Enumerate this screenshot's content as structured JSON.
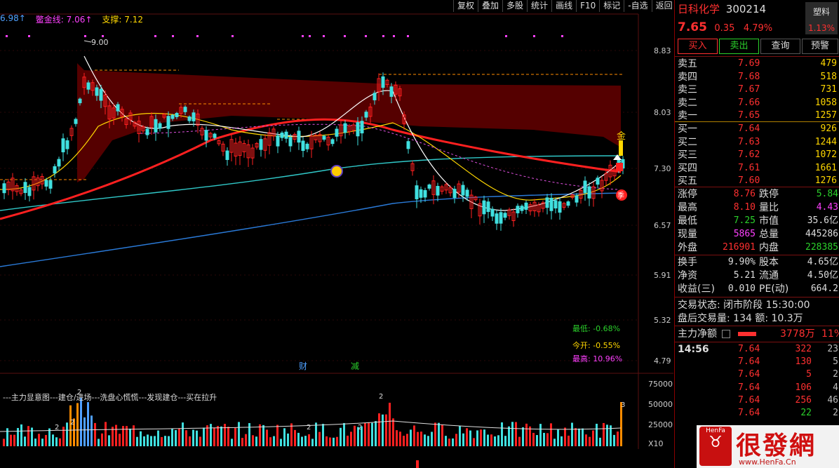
{
  "toolbar": [
    "复权",
    "叠加",
    "多股",
    "统计",
    "画线",
    "F10",
    "标记",
    "-自选",
    "返回"
  ],
  "indicators": {
    "first": "6.98↑",
    "second_label": "鳖金线: 7.06↑",
    "third_label": "支撑: 7.12"
  },
  "chart_price_marks": {
    "high_label": "9.00",
    "gold_label": "金",
    "ji_label": "季",
    "cai_label": "财",
    "jian_label": "减"
  },
  "price_axis": [
    "8.83",
    "8.03",
    "7.30",
    "6.57",
    "5.91",
    "5.32",
    "4.79"
  ],
  "vol_axis": [
    "75000",
    "50000",
    "25000",
    "X10"
  ],
  "stats_box": {
    "low": "最低: -0.68%",
    "open": "今开: -0.55%",
    "high": "最高: 10.96%"
  },
  "volume_caption": "---主力显意图---建仓/进场---洗盘心慌慌---发现建仓---买在拉升",
  "volume_marks": [
    "2",
    "2",
    "2",
    "2",
    "2",
    "2",
    "3"
  ],
  "stock": {
    "name": "日科化学",
    "code": "300214",
    "sector": "塑料",
    "sector_change": "1.13%",
    "price": "7.65",
    "change": "0.35",
    "change_pct": "4.79%"
  },
  "buttons": [
    "买入",
    "卖出",
    "查询",
    "预警"
  ],
  "asks": [
    {
      "label": "卖五",
      "price": "7.69",
      "vol": "479"
    },
    {
      "label": "卖四",
      "price": "7.68",
      "vol": "518"
    },
    {
      "label": "卖三",
      "price": "7.67",
      "vol": "731"
    },
    {
      "label": "卖二",
      "price": "7.66",
      "vol": "1058"
    },
    {
      "label": "卖一",
      "price": "7.65",
      "vol": "1257"
    }
  ],
  "bids": [
    {
      "label": "买一",
      "price": "7.64",
      "vol": "926"
    },
    {
      "label": "买二",
      "price": "7.63",
      "vol": "1244"
    },
    {
      "label": "买三",
      "price": "7.62",
      "vol": "1072"
    },
    {
      "label": "买四",
      "price": "7.61",
      "vol": "1661"
    },
    {
      "label": "买五",
      "price": "7.60",
      "vol": "1276"
    }
  ],
  "quote": [
    {
      "l1": "涨停",
      "v1": "8.76",
      "c1": "red",
      "l2": "跌停",
      "v2": "5.84",
      "c2": "green"
    },
    {
      "l1": "最高",
      "v1": "8.10",
      "c1": "red",
      "l2": "量比",
      "v2": "4.43",
      "c2": "magenta"
    },
    {
      "l1": "最低",
      "v1": "7.25",
      "c1": "green",
      "l2": "市值",
      "v2": "35.6亿",
      "c2": "white"
    },
    {
      "l1": "现量",
      "v1": "5865",
      "c1": "magenta",
      "l2": "总量",
      "v2": "445286",
      "c2": "white"
    },
    {
      "l1": "外盘",
      "v1": "216901",
      "c1": "red",
      "l2": "内盘",
      "v2": "228385",
      "c2": "green"
    }
  ],
  "fundamentals": [
    {
      "l1": "换手",
      "v1": "9.90%",
      "l2": "股本",
      "v2": "4.65亿"
    },
    {
      "l1": "净资",
      "v1": "5.21",
      "l2": "流通",
      "v2": "4.50亿"
    },
    {
      "l1": "收益(三)",
      "v1": "0.010",
      "l2": "PE(动)",
      "v2": "664.2"
    }
  ],
  "trade_status": "交易状态: 闭市阶段 15:30:00",
  "after_hours": "盘后交易量: 134  额: 10.3万",
  "main_net": {
    "label": "主力净额",
    "value": "3778万",
    "pct": "11%"
  },
  "ticks": [
    {
      "time": "14:56",
      "price": "7.64",
      "vol": "322",
      "n": "23"
    },
    {
      "time": "",
      "price": "7.64",
      "vol": "130",
      "n": "5"
    },
    {
      "time": "",
      "price": "7.64",
      "vol": "5",
      "n": "2"
    },
    {
      "time": "",
      "price": "7.64",
      "vol": "106",
      "n": "4"
    },
    {
      "time": "",
      "price": "7.64",
      "vol": "256",
      "n": "46"
    },
    {
      "time": "",
      "price": "7.64",
      "vol": "22",
      "n": "2"
    }
  ],
  "watermark": {
    "top": "HenFa",
    "main": "很發網",
    "url": "www.HenFa.Cn"
  }
}
